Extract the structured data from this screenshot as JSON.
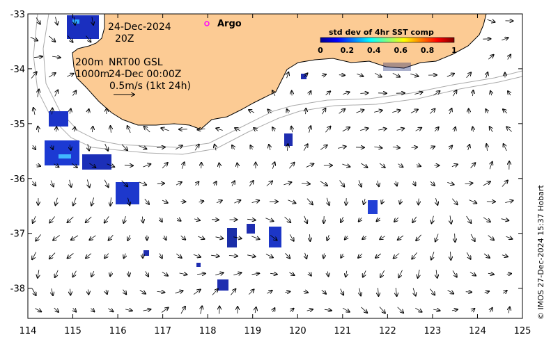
{
  "map": {
    "date_label": "24-Dec-2024",
    "time_label": "20Z",
    "depth_label_1": "200m",
    "depth_label_2": "1000m",
    "product_label": "NRT00 GSL",
    "analysis_time": "24-Dec 00:00Z",
    "scale_label": "0.5m/s (1kt 24h)",
    "argo_label": "Argo",
    "credit": "© IMOS 27-Dec-2024 15:37 Hobart",
    "x_ticks": [
      "114",
      "115",
      "116",
      "117",
      "118",
      "119",
      "120",
      "121",
      "122",
      "123",
      "124",
      "125"
    ],
    "y_ticks": [
      "-33",
      "-34",
      "-35",
      "-36",
      "-37",
      "-38"
    ],
    "lon_range": [
      114,
      125
    ],
    "lat_range": [
      -38.55,
      -33
    ],
    "colors": {
      "land": "#fccb94",
      "coast": "#000000",
      "bathy": "#aaaaaa"
    }
  },
  "colorbar": {
    "title": "std dev of 4hr SST comp",
    "tick_labels": [
      "0",
      "0.2",
      "0.4",
      "0.6",
      "0.8",
      "1"
    ],
    "range": [
      0,
      1
    ]
  }
}
